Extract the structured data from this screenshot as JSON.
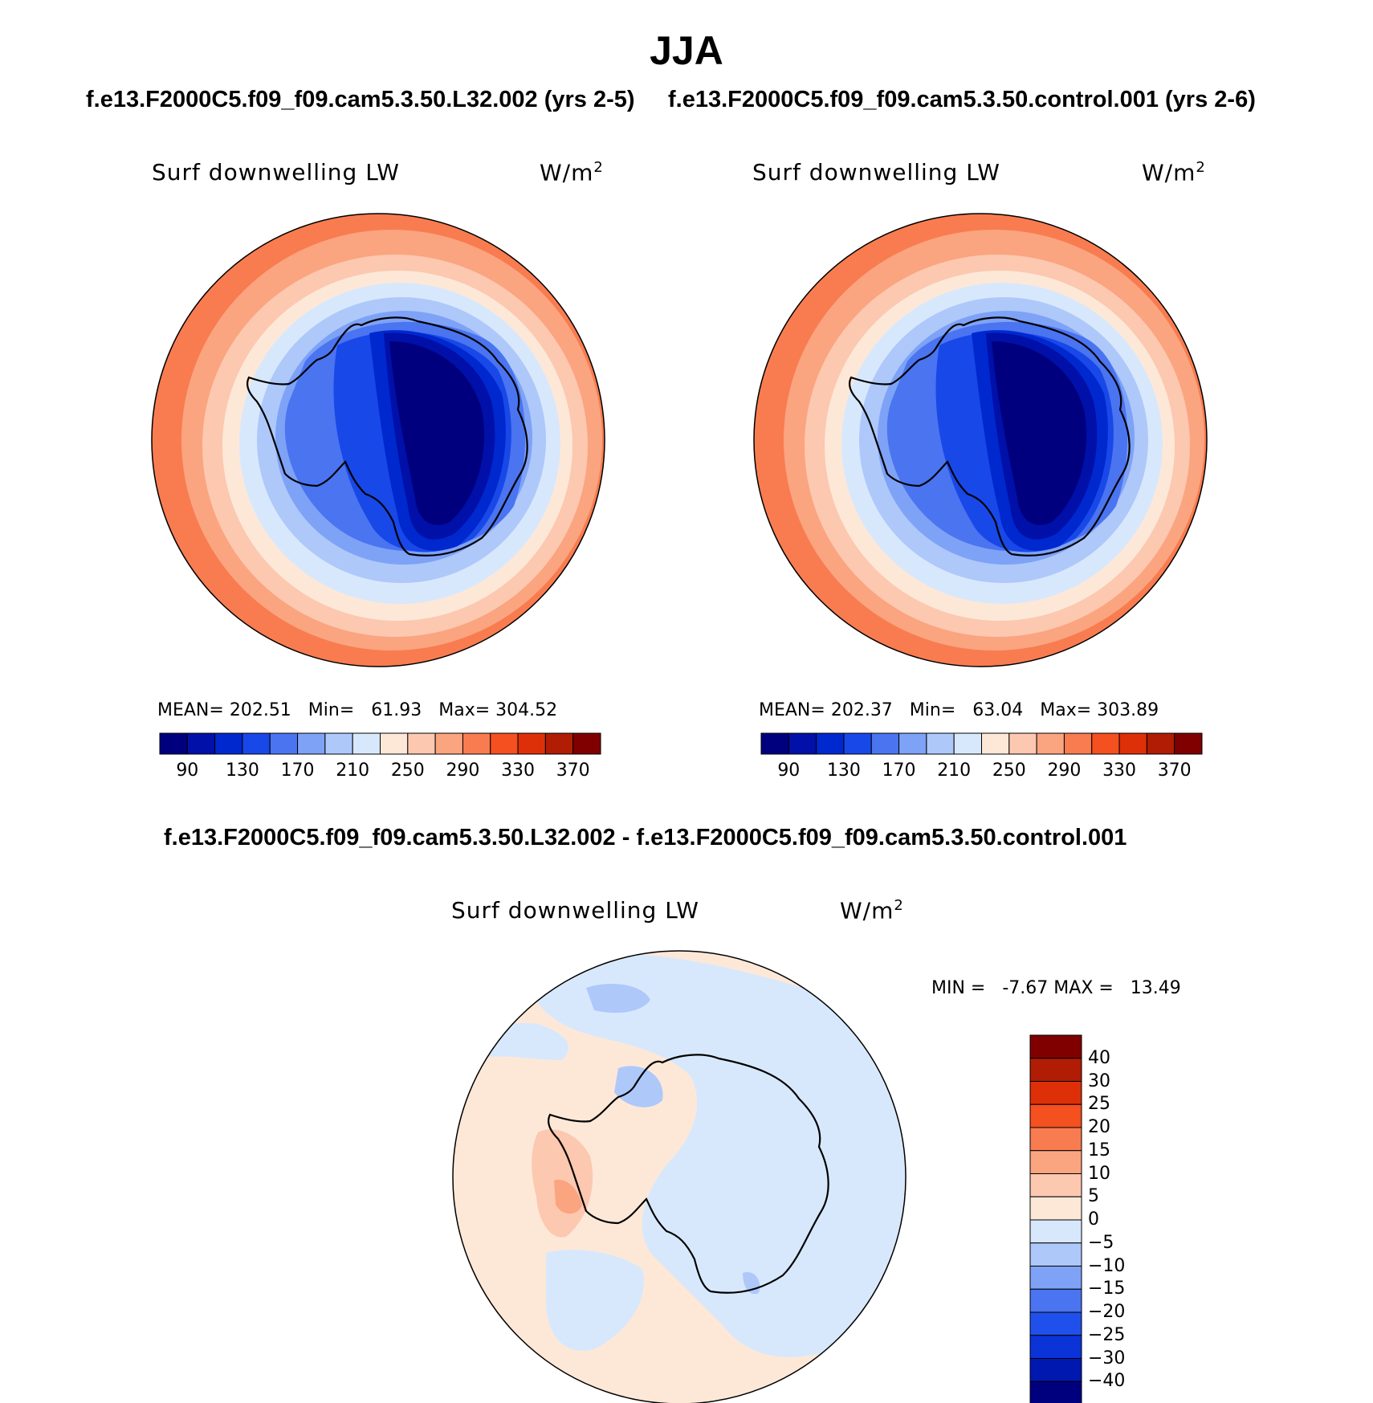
{
  "figure_title": "JJA",
  "panels": [
    {
      "case": "f.e13.F2000C5.f09_f09.cam5.3.50.L32.002 (yrs 2-5)",
      "variable": "Surf downwelling LW",
      "units": "W/m",
      "units_sup": "2",
      "stats": {
        "mean_label": "MEAN=",
        "mean": "202.51",
        "min_label": "Min=",
        "min": "61.93",
        "max_label": "Max=",
        "max": "304.52"
      }
    },
    {
      "case": "f.e13.F2000C5.f09_f09.cam5.3.50.control.001 (yrs 2-6)",
      "variable": "Surf downwelling LW",
      "units": "W/m",
      "units_sup": "2",
      "stats": {
        "mean_label": "MEAN=",
        "mean": "202.37",
        "min_label": "Min=",
        "min": "63.04",
        "max_label": "Max=",
        "max": "303.89"
      }
    }
  ],
  "diff_panel": {
    "title": "f.e13.F2000C5.f09_f09.cam5.3.50.L32.002 - f.e13.F2000C5.f09_f09.cam5.3.50.control.001",
    "variable": "Surf downwelling LW",
    "units": "W/m",
    "units_sup": "2",
    "minmax": {
      "min_label": "MIN =",
      "min": "-7.67",
      "max_label": "MAX =",
      "max": "13.49"
    }
  },
  "colorbar_abs": {
    "colors": [
      "#00007f",
      "#0010a8",
      "#0028cf",
      "#1848e8",
      "#4a74f0",
      "#7ea2f6",
      "#aec8fa",
      "#d8e8fc",
      "#fde8d8",
      "#fcc8b0",
      "#fba480",
      "#f87c50",
      "#f45020",
      "#dd3008",
      "#b01c04",
      "#800000"
    ],
    "tick_labels": [
      "90",
      "130",
      "170",
      "210",
      "250",
      "290",
      "330",
      "370"
    ]
  },
  "colorbar_diff": {
    "colors": [
      "#00007f",
      "#0018b0",
      "#0a34d8",
      "#2050ec",
      "#4a74f0",
      "#7ea2f6",
      "#aec8fa",
      "#d8e8fc",
      "#fde8d8",
      "#fcc8b0",
      "#fba480",
      "#f87c50",
      "#f45020",
      "#dd3008",
      "#b01c04",
      "#800000"
    ],
    "tick_labels": [
      "40",
      "30",
      "25",
      "20",
      "15",
      "10",
      "5",
      "0",
      "−5",
      "−10",
      "−15",
      "−20",
      "−25",
      "−30",
      "−40"
    ]
  }
}
